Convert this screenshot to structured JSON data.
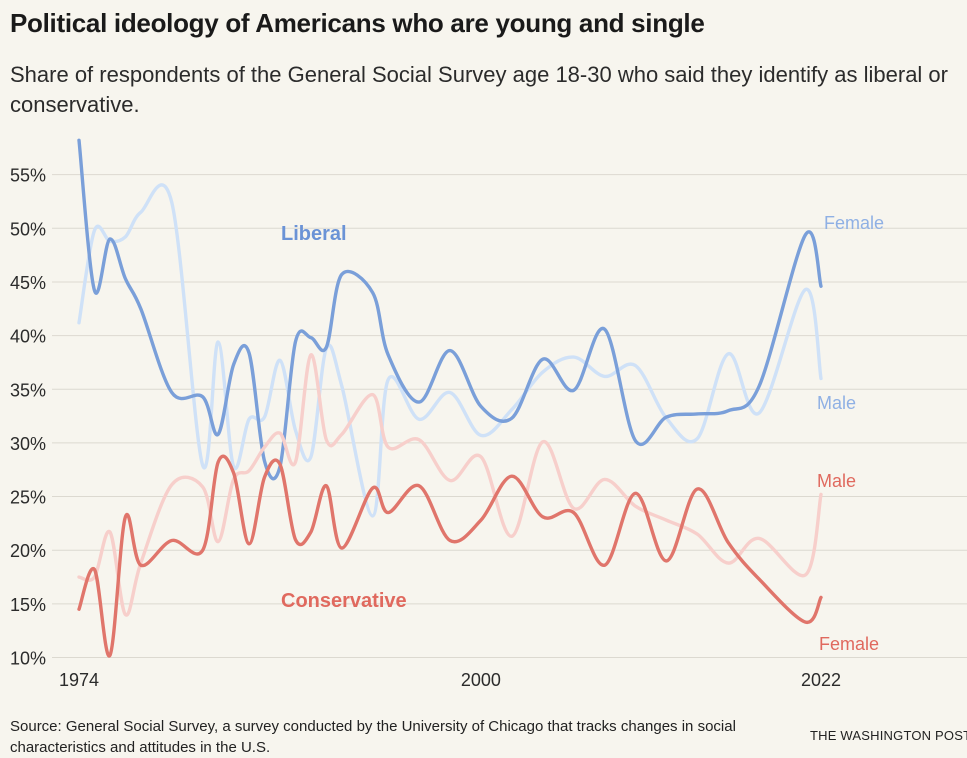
{
  "header": {
    "title": "Political ideology of Americans who are young and single",
    "subtitle": "Share of respondents of the General Social Survey age 18-30 who said they identify as liberal or conservative."
  },
  "footer": {
    "source": "Source: General Social Survey, a survey conducted by the University of Chicago that tracks changes in social characteristics and attitudes in the U.S.",
    "credit": "THE WASHINGTON POST"
  },
  "chart_data": {
    "type": "line",
    "x_ticks": [
      "1974",
      "2000",
      "2022"
    ],
    "y_ticks": [
      "10%",
      "15%",
      "20%",
      "25%",
      "30%",
      "35%",
      "40%",
      "45%",
      "50%",
      "55%"
    ],
    "xlim": [
      1974,
      2022
    ],
    "ylim": [
      10,
      57
    ],
    "grid": true,
    "group_labels": [
      {
        "text": "Liberal",
        "color": "#6b93d6"
      },
      {
        "text": "Conservative",
        "color": "#e0695e"
      }
    ],
    "series": [
      {
        "name": "Male",
        "group": "Liberal",
        "color": "#cfe1f7",
        "x": [
          1974,
          1975,
          1976,
          1977,
          1978,
          1980,
          1982,
          1983,
          1984,
          1985,
          1986,
          1987,
          1988,
          1989,
          1990,
          1991,
          1993,
          1994,
          1996,
          1998,
          2000,
          2002,
          2004,
          2006,
          2008,
          2010,
          2012,
          2014,
          2016,
          2018,
          2021,
          2022
        ],
        "y": [
          41.2,
          49.8,
          48.8,
          49.2,
          51.5,
          52.4,
          27.9,
          39.4,
          27.8,
          32.2,
          32.4,
          37.7,
          31.2,
          28.7,
          38.8,
          35.3,
          23.2,
          35.9,
          32.2,
          34.7,
          30.7,
          33.1,
          36.6,
          38.0,
          36.2,
          37.2,
          32.3,
          30.4,
          38.3,
          32.8,
          44.3,
          36.0
        ]
      },
      {
        "name": "Female",
        "group": "Liberal",
        "color": "#7a9fd9",
        "x": [
          1974,
          1975,
          1976,
          1977,
          1978,
          1980,
          1982,
          1983,
          1984,
          1985,
          1986,
          1987,
          1988,
          1989,
          1990,
          1991,
          1993,
          1994,
          1996,
          1998,
          2000,
          2002,
          2004,
          2006,
          2008,
          2010,
          2012,
          2014,
          2016,
          2018,
          2021,
          2022
        ],
        "y": [
          58.2,
          44.2,
          49.0,
          45.3,
          42.5,
          34.7,
          34.3,
          30.8,
          37.3,
          38.4,
          28.3,
          27.8,
          39.4,
          39.8,
          38.9,
          45.7,
          44.0,
          38.2,
          33.8,
          38.6,
          33.4,
          32.3,
          37.8,
          34.9,
          40.6,
          30.2,
          32.4,
          32.7,
          33.0,
          35.3,
          49.4,
          44.6
        ]
      },
      {
        "name": "Male",
        "group": "Conservative",
        "color": "#f7cfcb",
        "x": [
          1974,
          1975,
          1976,
          1977,
          1978,
          1980,
          1982,
          1983,
          1984,
          1985,
          1986,
          1987,
          1988,
          1989,
          1990,
          1991,
          1993,
          1994,
          1996,
          1998,
          2000,
          2002,
          2004,
          2006,
          2008,
          2010,
          2012,
          2014,
          2016,
          2018,
          2021,
          2022
        ],
        "y": [
          17.5,
          17.5,
          21.7,
          14.0,
          18.8,
          26.1,
          25.9,
          20.8,
          26.6,
          27.4,
          29.6,
          30.9,
          28.2,
          38.2,
          30.3,
          30.8,
          34.5,
          29.6,
          30.3,
          26.5,
          28.7,
          21.3,
          30.1,
          23.9,
          26.6,
          24.1,
          22.8,
          21.5,
          18.8,
          21.1,
          17.7,
          25.2
        ]
      },
      {
        "name": "Female",
        "group": "Conservative",
        "color": "#e0756b",
        "x": [
          1974,
          1975,
          1976,
          1977,
          1978,
          1980,
          1982,
          1983,
          1984,
          1985,
          1986,
          1987,
          1988,
          1989,
          1990,
          1991,
          1993,
          1994,
          1996,
          1998,
          2000,
          2002,
          2004,
          2006,
          2008,
          2010,
          2012,
          2014,
          2016,
          2018,
          2021,
          2022
        ],
        "y": [
          14.5,
          18.2,
          10.2,
          23.1,
          18.6,
          20.9,
          20.0,
          28.2,
          27.2,
          20.6,
          26.8,
          28.0,
          21.0,
          21.7,
          26.0,
          20.2,
          25.8,
          23.5,
          26.0,
          20.9,
          22.8,
          26.9,
          23.1,
          23.5,
          18.6,
          25.3,
          19.0,
          25.7,
          20.7,
          17.3,
          13.3,
          15.6
        ]
      }
    ]
  }
}
